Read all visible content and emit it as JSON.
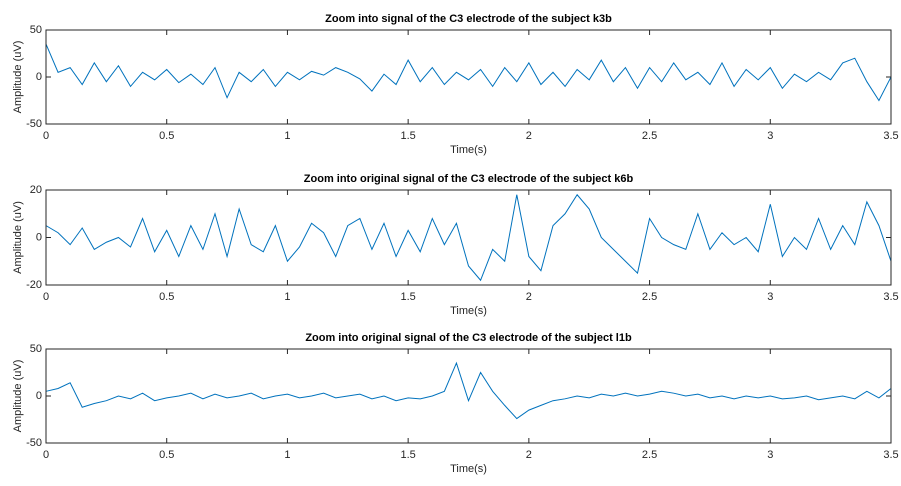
{
  "chart_data": [
    {
      "type": "line",
      "title": "Zoom into signal of the C3 electrode of the subject k3b",
      "xlabel": "Time(s)",
      "ylabel": "Amplitude (uV)",
      "x": [
        0,
        0.05,
        0.1,
        0.15,
        0.2,
        0.25,
        0.3,
        0.35,
        0.4,
        0.45,
        0.5,
        0.55,
        0.6,
        0.65,
        0.7,
        0.75,
        0.8,
        0.85,
        0.9,
        0.95,
        1,
        1.05,
        1.1,
        1.15,
        1.2,
        1.25,
        1.3,
        1.35,
        1.4,
        1.45,
        1.5,
        1.55,
        1.6,
        1.65,
        1.7,
        1.75,
        1.8,
        1.85,
        1.9,
        1.95,
        2,
        2.05,
        2.1,
        2.15,
        2.2,
        2.25,
        2.3,
        2.35,
        2.4,
        2.45,
        2.5,
        2.55,
        2.6,
        2.65,
        2.7,
        2.75,
        2.8,
        2.85,
        2.9,
        2.95,
        3,
        3.05,
        3.1,
        3.15,
        3.2,
        3.25,
        3.3,
        3.35,
        3.4,
        3.45,
        3.5
      ],
      "series": [
        {
          "color": "#0072bd",
          "values": [
            35,
            5,
            10,
            -8,
            15,
            -5,
            12,
            -10,
            5,
            -3,
            8,
            -6,
            3,
            -8,
            10,
            -22,
            5,
            -5,
            8,
            -10,
            5,
            -3,
            6,
            2,
            10,
            5,
            -2,
            -15,
            3,
            -8,
            18,
            -5,
            10,
            -8,
            5,
            -3,
            8,
            -10,
            10,
            -5,
            15,
            -8,
            5,
            -10,
            8,
            -3,
            18,
            -5,
            10,
            -12,
            10,
            -5,
            15,
            -3,
            5,
            -8,
            15,
            -10,
            8,
            -3,
            10,
            -12,
            3,
            -5,
            5,
            -3,
            15,
            20,
            -5,
            -25,
            0
          ]
        }
      ],
      "xlim": [
        0,
        3.5
      ],
      "xticks": [
        0,
        0.5,
        1,
        1.5,
        2,
        2.5,
        3,
        3.5
      ],
      "ylim": [
        -50,
        50
      ],
      "yticks": [
        -50,
        0,
        50
      ]
    },
    {
      "type": "line",
      "title": "Zoom into original signal of the C3 electrode of the subject k6b",
      "xlabel": "Time(s)",
      "ylabel": "Amplitude (uV)",
      "x": [
        0,
        0.05,
        0.1,
        0.15,
        0.2,
        0.25,
        0.3,
        0.35,
        0.4,
        0.45,
        0.5,
        0.55,
        0.6,
        0.65,
        0.7,
        0.75,
        0.8,
        0.85,
        0.9,
        0.95,
        1,
        1.05,
        1.1,
        1.15,
        1.2,
        1.25,
        1.3,
        1.35,
        1.4,
        1.45,
        1.5,
        1.55,
        1.6,
        1.65,
        1.7,
        1.75,
        1.8,
        1.85,
        1.9,
        1.95,
        2,
        2.05,
        2.1,
        2.15,
        2.2,
        2.25,
        2.3,
        2.35,
        2.4,
        2.45,
        2.5,
        2.55,
        2.6,
        2.65,
        2.7,
        2.75,
        2.8,
        2.85,
        2.9,
        2.95,
        3,
        3.05,
        3.1,
        3.15,
        3.2,
        3.25,
        3.3,
        3.35,
        3.4,
        3.45,
        3.5
      ],
      "series": [
        {
          "color": "#0072bd",
          "values": [
            5,
            2,
            -3,
            4,
            -5,
            -2,
            0,
            -4,
            8,
            -6,
            3,
            -8,
            5,
            -5,
            10,
            -8,
            12,
            -3,
            -6,
            5,
            -10,
            -4,
            6,
            2,
            -8,
            5,
            8,
            -5,
            6,
            -8,
            3,
            -6,
            8,
            -3,
            6,
            -12,
            -18,
            -5,
            -10,
            18,
            -8,
            -14,
            5,
            10,
            18,
            12,
            0,
            -5,
            -10,
            -15,
            8,
            0,
            -3,
            -5,
            10,
            -5,
            2,
            -3,
            0,
            -6,
            14,
            -8,
            0,
            -5,
            8,
            -5,
            5,
            -3,
            15,
            5,
            -10
          ]
        }
      ],
      "xlim": [
        0,
        3.5
      ],
      "xticks": [
        0,
        0.5,
        1,
        1.5,
        2,
        2.5,
        3,
        3.5
      ],
      "ylim": [
        -20,
        20
      ],
      "yticks": [
        -20,
        0,
        20
      ]
    },
    {
      "type": "line",
      "title": "Zoom into original signal of the C3 electrode of the subject l1b",
      "xlabel": "Time(s)",
      "ylabel": "Amplitude (uV)",
      "x": [
        0,
        0.05,
        0.1,
        0.15,
        0.2,
        0.25,
        0.3,
        0.35,
        0.4,
        0.45,
        0.5,
        0.55,
        0.6,
        0.65,
        0.7,
        0.75,
        0.8,
        0.85,
        0.9,
        0.95,
        1,
        1.05,
        1.1,
        1.15,
        1.2,
        1.25,
        1.3,
        1.35,
        1.4,
        1.45,
        1.5,
        1.55,
        1.6,
        1.65,
        1.7,
        1.75,
        1.8,
        1.85,
        1.9,
        1.95,
        2,
        2.05,
        2.1,
        2.15,
        2.2,
        2.25,
        2.3,
        2.35,
        2.4,
        2.45,
        2.5,
        2.55,
        2.6,
        2.65,
        2.7,
        2.75,
        2.8,
        2.85,
        2.9,
        2.95,
        3,
        3.05,
        3.1,
        3.15,
        3.2,
        3.25,
        3.3,
        3.35,
        3.4,
        3.45,
        3.5
      ],
      "series": [
        {
          "color": "#0072bd",
          "values": [
            5,
            8,
            14,
            -12,
            -8,
            -5,
            0,
            -3,
            3,
            -5,
            -2,
            0,
            3,
            -3,
            2,
            -2,
            0,
            3,
            -3,
            0,
            2,
            -2,
            0,
            3,
            -2,
            0,
            2,
            -3,
            0,
            -5,
            -2,
            -3,
            0,
            5,
            35,
            -5,
            25,
            5,
            -10,
            -24,
            -15,
            -10,
            -5,
            -3,
            0,
            -2,
            2,
            0,
            3,
            0,
            2,
            5,
            3,
            0,
            2,
            -2,
            0,
            -3,
            0,
            -2,
            0,
            -3,
            -2,
            0,
            -4,
            -2,
            0,
            -3,
            5,
            -2,
            8
          ]
        }
      ],
      "xlim": [
        0,
        3.5
      ],
      "xticks": [
        0,
        0.5,
        1,
        1.5,
        2,
        2.5,
        3,
        3.5
      ],
      "ylim": [
        -50,
        50
      ],
      "yticks": [
        -50,
        0,
        50
      ]
    }
  ]
}
